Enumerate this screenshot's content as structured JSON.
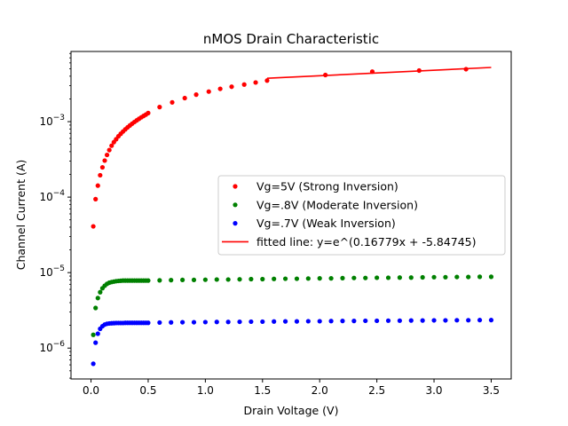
{
  "chart_data": {
    "type": "scatter",
    "title": "nMOS Drain Characteristic",
    "xlabel": "Drain Voltage (V)",
    "ylabel": "Channel Current (A)",
    "xlim": [
      -0.175,
      3.675
    ],
    "ylim": [
      3.9e-07,
      0.0085
    ],
    "yscale": "log",
    "grid": false,
    "legend_position": "center-right",
    "x_ticks": [
      0.0,
      0.5,
      1.0,
      1.5,
      2.0,
      2.5,
      3.0,
      3.5
    ],
    "x_tick_labels": [
      "0.0",
      "0.5",
      "1.0",
      "1.5",
      "2.0",
      "2.5",
      "3.0",
      "3.5"
    ],
    "y_ticks": [
      -6,
      -5,
      -4,
      -3
    ],
    "y_tick_labels": [
      {
        "base": "10",
        "exp": "−6"
      },
      {
        "base": "10",
        "exp": "−5"
      },
      {
        "base": "10",
        "exp": "−4"
      },
      {
        "base": "10",
        "exp": "−3"
      }
    ],
    "series": [
      {
        "name": "Vg=5V (Strong Inversion)",
        "color": "#ff0000",
        "marker": "dot",
        "x": [
          0.02,
          0.04,
          0.06,
          0.08,
          0.1,
          0.12,
          0.14,
          0.16,
          0.18,
          0.2,
          0.22,
          0.24,
          0.26,
          0.28,
          0.3,
          0.32,
          0.34,
          0.36,
          0.38,
          0.4,
          0.42,
          0.44,
          0.46,
          0.48,
          0.5,
          0.6,
          0.71,
          0.82,
          0.92,
          1.03,
          1.13,
          1.23,
          1.34,
          1.44,
          1.54,
          2.05,
          2.46,
          2.87,
          3.28
        ],
        "y": [
          4.1e-05,
          9.4e-05,
          0.000142,
          0.000195,
          0.000248,
          0.000305,
          0.000362,
          0.00042,
          0.00048,
          0.000535,
          0.000585,
          0.00064,
          0.00069,
          0.00074,
          0.00079,
          0.00084,
          0.00089,
          0.00094,
          0.00099,
          0.00104,
          0.00109,
          0.00114,
          0.00119,
          0.00124,
          0.0013,
          0.00156,
          0.0018,
          0.00205,
          0.00228,
          0.0025,
          0.00272,
          0.0029,
          0.0031,
          0.0033,
          0.0035,
          0.00415,
          0.0046,
          0.00475,
          0.00495
        ]
      },
      {
        "name": "Vg=.8V (Moderate Inversion)",
        "color": "#008000",
        "marker": "dot",
        "x": [
          0.02,
          0.04,
          0.06,
          0.08,
          0.1,
          0.12,
          0.14,
          0.16,
          0.18,
          0.2,
          0.22,
          0.24,
          0.26,
          0.28,
          0.3,
          0.32,
          0.34,
          0.36,
          0.38,
          0.4,
          0.42,
          0.44,
          0.46,
          0.48,
          0.5,
          0.6,
          0.7,
          0.8,
          0.9,
          1.0,
          1.1,
          1.2,
          1.3,
          1.4,
          1.5,
          1.6,
          1.7,
          1.8,
          1.9,
          2.0,
          2.1,
          2.2,
          2.3,
          2.4,
          2.5,
          2.6,
          2.7,
          2.8,
          2.9,
          3.0,
          3.1,
          3.2,
          3.3,
          3.4,
          3.5
        ],
        "y": [
          1.5e-06,
          3.4e-06,
          4.6e-06,
          5.5e-06,
          6.2e-06,
          6.7e-06,
          7.1e-06,
          7.35e-06,
          7.5e-06,
          7.6e-06,
          7.7e-06,
          7.75e-06,
          7.8e-06,
          7.85e-06,
          7.85e-06,
          7.85e-06,
          7.85e-06,
          7.85e-06,
          7.85e-06,
          7.85e-06,
          7.85e-06,
          7.85e-06,
          7.85e-06,
          7.85e-06,
          7.85e-06,
          7.9e-06,
          7.95e-06,
          8e-06,
          8e-06,
          8.05e-06,
          8.1e-06,
          8.1e-06,
          8.15e-06,
          8.2e-06,
          8.2e-06,
          8.25e-06,
          8.3e-06,
          8.3e-06,
          8.35e-06,
          8.4e-06,
          8.4e-06,
          8.45e-06,
          8.5e-06,
          8.5e-06,
          8.55e-06,
          8.55e-06,
          8.6e-06,
          8.6e-06,
          8.65e-06,
          8.7e-06,
          8.7e-06,
          8.75e-06,
          8.75e-06,
          8.8e-06,
          8.8e-06
        ]
      },
      {
        "name": "Vg=.7V (Weak Inversion)",
        "color": "#0000ff",
        "marker": "dot",
        "x": [
          0.02,
          0.04,
          0.06,
          0.08,
          0.1,
          0.12,
          0.14,
          0.16,
          0.18,
          0.2,
          0.22,
          0.24,
          0.26,
          0.28,
          0.3,
          0.32,
          0.34,
          0.36,
          0.38,
          0.4,
          0.42,
          0.44,
          0.46,
          0.48,
          0.5,
          0.6,
          0.7,
          0.8,
          0.9,
          1.0,
          1.1,
          1.2,
          1.3,
          1.4,
          1.5,
          1.6,
          1.7,
          1.8,
          1.9,
          2.0,
          2.1,
          2.2,
          2.3,
          2.4,
          2.5,
          2.6,
          2.7,
          2.8,
          2.9,
          3.0,
          3.1,
          3.2,
          3.3,
          3.4,
          3.5
        ],
        "y": [
          6.2e-07,
          1.18e-06,
          1.55e-06,
          1.8e-06,
          1.95e-06,
          2.05e-06,
          2.1e-06,
          2.12e-06,
          2.13e-06,
          2.14e-06,
          2.15e-06,
          2.15e-06,
          2.15e-06,
          2.15e-06,
          2.16e-06,
          2.16e-06,
          2.16e-06,
          2.16e-06,
          2.16e-06,
          2.16e-06,
          2.16e-06,
          2.16e-06,
          2.16e-06,
          2.16e-06,
          2.16e-06,
          2.18e-06,
          2.19e-06,
          2.2e-06,
          2.2e-06,
          2.21e-06,
          2.22e-06,
          2.22e-06,
          2.23e-06,
          2.24e-06,
          2.24e-06,
          2.25e-06,
          2.26e-06,
          2.26e-06,
          2.27e-06,
          2.27e-06,
          2.28e-06,
          2.29e-06,
          2.29e-06,
          2.3e-06,
          2.3e-06,
          2.31e-06,
          2.31e-06,
          2.32e-06,
          2.32e-06,
          2.33e-06,
          2.33e-06,
          2.34e-06,
          2.34e-06,
          2.35e-06,
          2.35e-06
        ]
      },
      {
        "name": "fitted line: y=e^(0.16779x + -5.84745)",
        "color": "#ff0000",
        "marker": "line",
        "x": [
          1.54,
          3.5
        ],
        "y": [
          0.00375,
          0.00522
        ]
      }
    ]
  }
}
